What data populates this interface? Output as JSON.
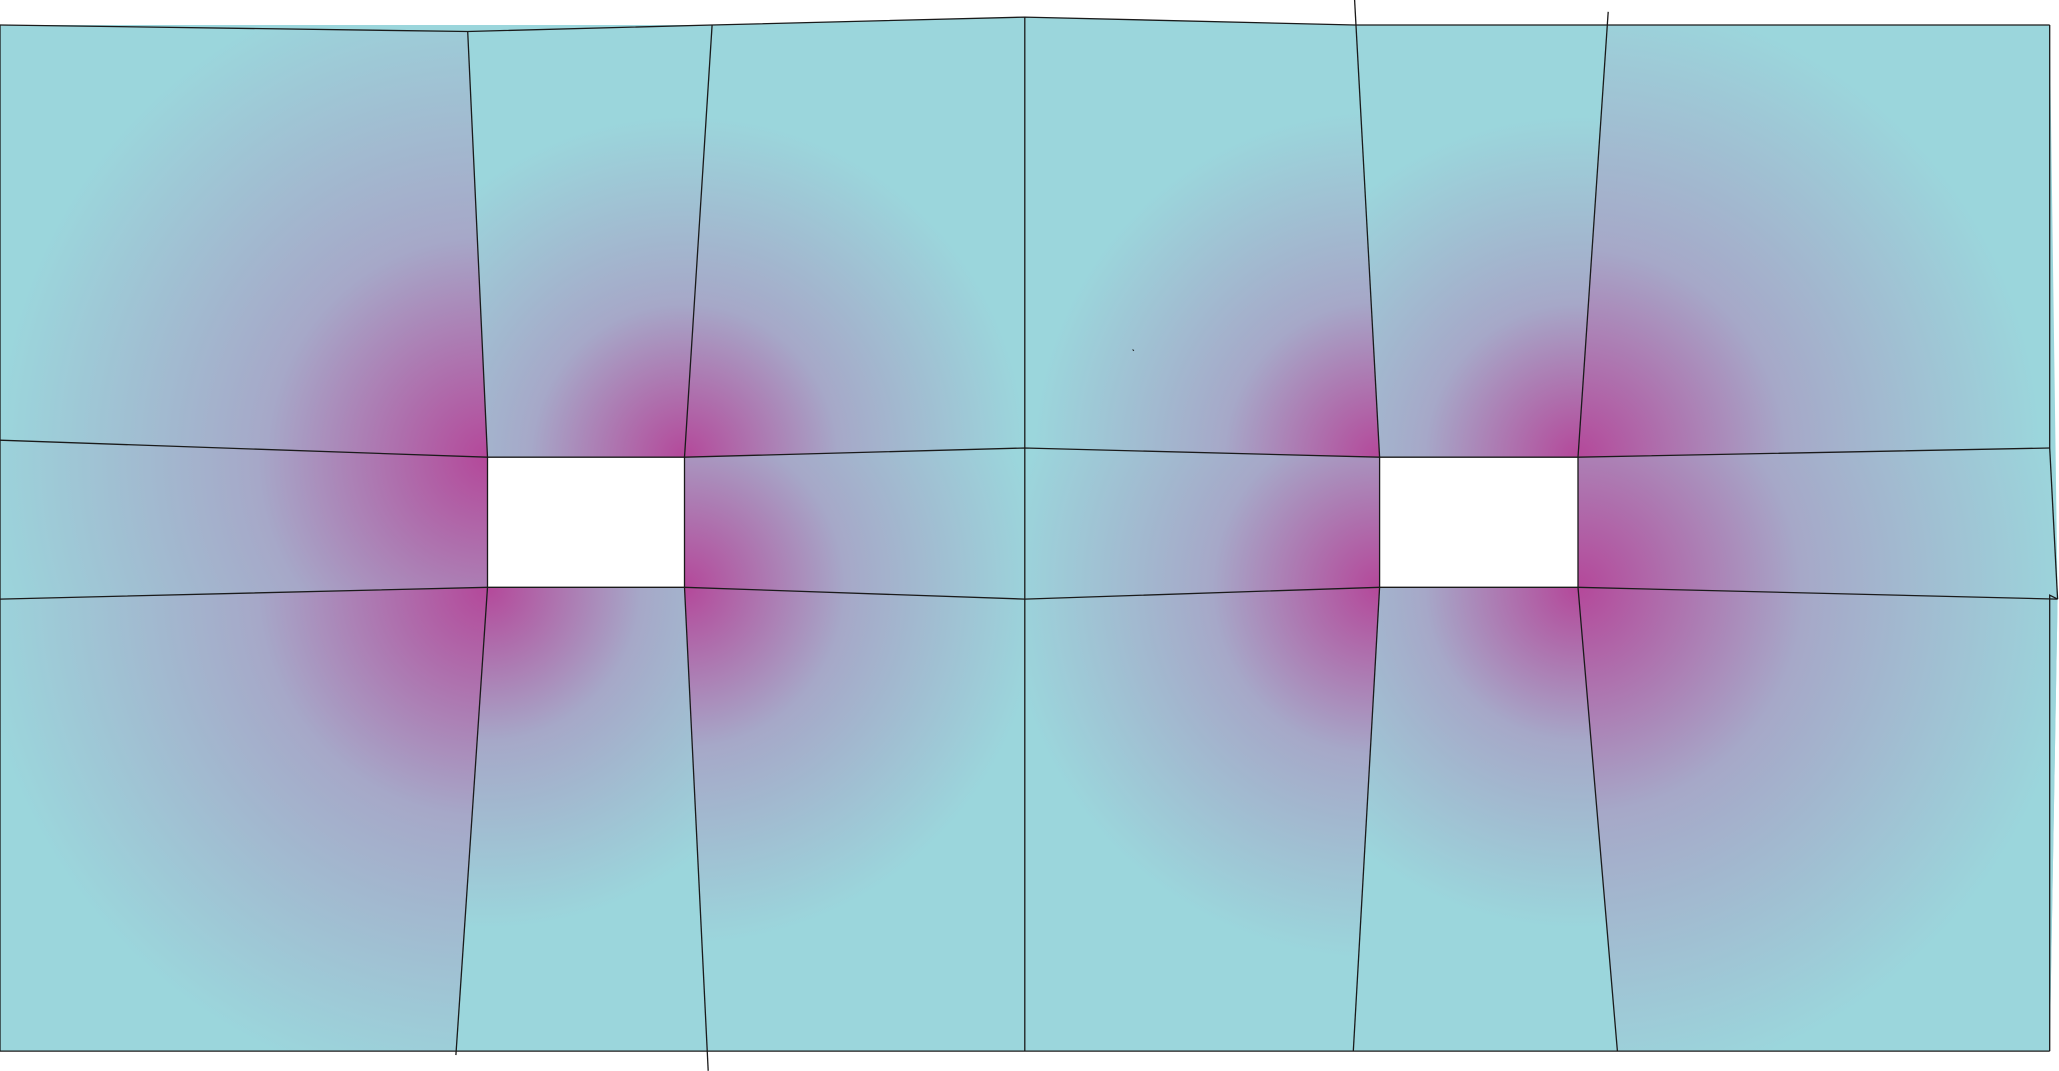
{
  "colors": {
    "background": "#ffffff",
    "base_fill": "#9bd6dc",
    "mid_fill": "#a6a8c8",
    "hot_fill": "#b4489a",
    "stroke": "#1a1a1a",
    "opening_fill": "#ffffff"
  }
}
